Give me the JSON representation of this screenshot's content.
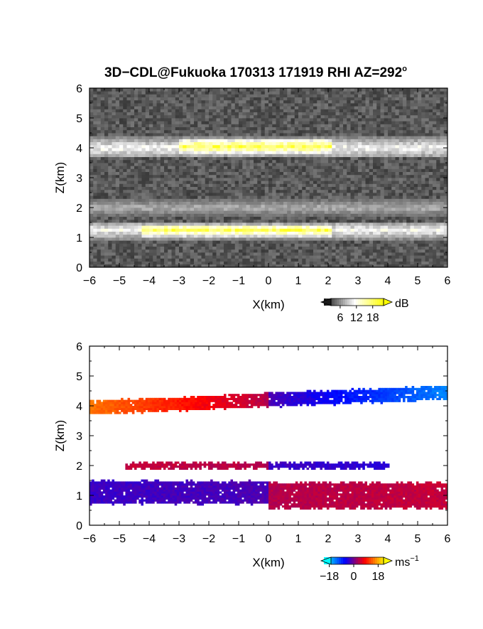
{
  "title": "3D−CDL@Fukuoka 170313 171919 RHI AZ=292",
  "title_degree": "o",
  "chart_data": [
    {
      "type": "heatmap",
      "name": "reflectivity",
      "xlabel": "X(km)",
      "ylabel": "Z(km)",
      "xlim": [
        -6,
        6
      ],
      "ylim": [
        0,
        6
      ],
      "x_ticks": [
        "−6",
        "−5",
        "−4",
        "−3",
        "−2",
        "−1",
        "0",
        "1",
        "2",
        "3",
        "4",
        "5",
        "6"
      ],
      "y_ticks": [
        "0",
        "1",
        "2",
        "3",
        "4",
        "5",
        "6"
      ],
      "colorbar": {
        "unit": "dB",
        "ticks": [
          "6",
          "12",
          "18"
        ],
        "tick_values": [
          6,
          12,
          18
        ],
        "range": [
          0,
          22
        ],
        "colors": [
          "#1a1a1a",
          "#ffffff",
          "#ffff00"
        ]
      },
      "layers": [
        {
          "x_range": [
            -6,
            6
          ],
          "z_center": 4.0,
          "thickness": 0.35,
          "level": 12
        },
        {
          "x_range": [
            -3.1,
            2.1
          ],
          "z_center": 4.05,
          "thickness": 0.25,
          "level": 20
        },
        {
          "x_range": [
            -6,
            6
          ],
          "z_center": 2.0,
          "thickness": 0.3,
          "level": 8
        },
        {
          "x_range": [
            -6,
            6
          ],
          "z_center": 1.25,
          "thickness": 0.3,
          "level": 12
        },
        {
          "x_range": [
            -4.3,
            2.1
          ],
          "z_center": 1.25,
          "thickness": 0.2,
          "level": 20
        }
      ]
    },
    {
      "type": "heatmap",
      "name": "doppler_velocity",
      "xlabel": "X(km)",
      "ylabel": "Z(km)",
      "xlim": [
        -6,
        6
      ],
      "ylim": [
        0,
        6
      ],
      "x_ticks": [
        "−6",
        "−5",
        "−4",
        "−3",
        "−2",
        "−1",
        "0",
        "1",
        "2",
        "3",
        "4",
        "5",
        "6"
      ],
      "y_ticks": [
        "0",
        "1",
        "2",
        "3",
        "4",
        "5",
        "6"
      ],
      "colorbar": {
        "unit": "ms",
        "unit_exp": "−1",
        "ticks": [
          "−18",
          "0",
          "18"
        ],
        "tick_values": [
          -18,
          0,
          18
        ],
        "range": [
          -22,
          22
        ],
        "colors": [
          "#00ffff",
          "#0000ff",
          "#ff0000",
          "#ffff00"
        ]
      },
      "layers": [
        {
          "x_range": [
            -6,
            -0.05
          ],
          "z_center": 4.2,
          "thickness": 0.4,
          "velocity_start": 14,
          "velocity_end": 3
        },
        {
          "x_range": [
            -0.05,
            6
          ],
          "z_center": 4.2,
          "thickness": 0.4,
          "velocity_start": -3,
          "velocity_end": -15
        },
        {
          "x_range": [
            -4.8,
            0
          ],
          "z_center": 2.0,
          "thickness": 0.15,
          "velocity_start": 4,
          "velocity_end": 3
        },
        {
          "x_range": [
            0,
            4
          ],
          "z_center": 2.0,
          "thickness": 0.15,
          "velocity_start": -4,
          "velocity_end": -5
        },
        {
          "x_range": [
            -6,
            -0.05
          ],
          "z_center": 1.1,
          "thickness": 0.7,
          "velocity_start": -4,
          "velocity_end": -3
        },
        {
          "x_range": [
            -0.05,
            6
          ],
          "z_center": 1.0,
          "thickness": 0.8,
          "velocity_start": 3,
          "velocity_end": 4
        }
      ]
    }
  ]
}
